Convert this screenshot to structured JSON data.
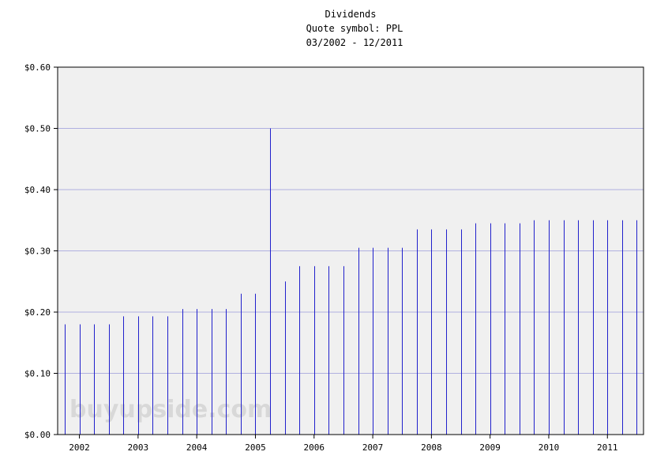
{
  "chart_data": {
    "type": "bar",
    "title": "Dividends",
    "subtitle_1": "Quote symbol: PPL",
    "subtitle_2": "03/2002 - 12/2011",
    "watermark": "buyupside.com",
    "ylim": [
      0,
      0.6
    ],
    "yticks": [
      "$0.00",
      "$0.10",
      "$0.20",
      "$0.30",
      "$0.40",
      "$0.50",
      "$0.60"
    ],
    "ytick_values": [
      0,
      0.1,
      0.2,
      0.3,
      0.4,
      0.5,
      0.6
    ],
    "xticks": [
      "2002",
      "2003",
      "2004",
      "2005",
      "2006",
      "2007",
      "2008",
      "2009",
      "2010",
      "2011"
    ],
    "grid": true,
    "colors": {
      "bar": "#2020cc",
      "grid": "#b0b0e0",
      "plot_background": "#f0f0f0",
      "axis": "#000000"
    },
    "series": [
      {
        "x": [
          "03/2002",
          "06/2002",
          "09/2002",
          "12/2002",
          "03/2003",
          "06/2003",
          "09/2003",
          "12/2003",
          "03/2004",
          "06/2004",
          "09/2004",
          "12/2004",
          "03/2005",
          "06/2005",
          "09/2005",
          "12/2005",
          "03/2006",
          "06/2006",
          "09/2006",
          "12/2006",
          "03/2007",
          "06/2007",
          "09/2007",
          "12/2007",
          "03/2008",
          "06/2008",
          "09/2008",
          "12/2008",
          "03/2009",
          "06/2009",
          "09/2009",
          "12/2009",
          "03/2010",
          "06/2010",
          "09/2010",
          "12/2010",
          "03/2011",
          "06/2011",
          "09/2011",
          "12/2011"
        ],
        "values": [
          0.18,
          0.18,
          0.18,
          0.18,
          0.193,
          0.193,
          0.193,
          0.193,
          0.205,
          0.205,
          0.205,
          0.205,
          0.23,
          0.23,
          0.5,
          0.25,
          0.275,
          0.275,
          0.275,
          0.275,
          0.305,
          0.305,
          0.305,
          0.305,
          0.335,
          0.335,
          0.335,
          0.335,
          0.345,
          0.345,
          0.345,
          0.345,
          0.35,
          0.35,
          0.35,
          0.35,
          0.35,
          0.35,
          0.35,
          0.35
        ]
      }
    ]
  }
}
